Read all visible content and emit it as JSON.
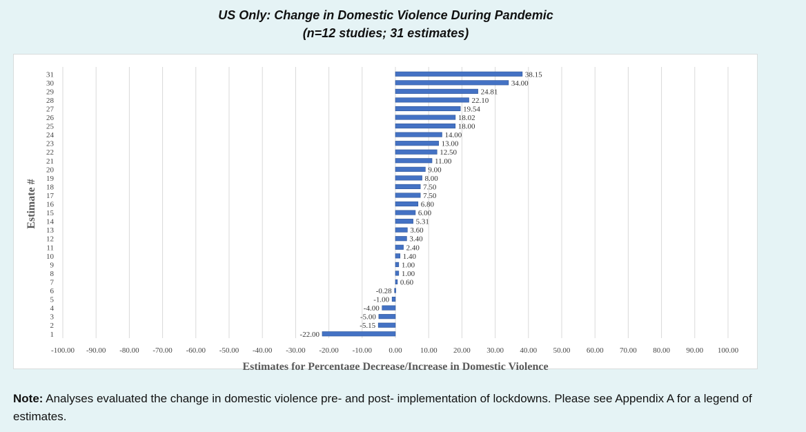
{
  "title_line1": "US Only:  Change in Domestic Violence During Pandemic",
  "title_line2": "(n=12 studies; 31 estimates)",
  "note": {
    "label": "Note:",
    "text": " Analyses evaluated the change in domestic violence pre- and post- implementation of lockdowns. Please see Appendix A for a legend of estimates."
  },
  "chart_data": {
    "type": "bar",
    "orientation": "horizontal",
    "xlabel": "Estimates for Percentage Decrease/Increase in Domestic Violence",
    "ylabel": "Estimate #",
    "xlim": [
      -100,
      100
    ],
    "xticks": [
      "-100.00",
      "-90.00",
      "-80.00",
      "-70.00",
      "-60.00",
      "-50.00",
      "-40.00",
      "-30.00",
      "-20.00",
      "-10.00",
      "0.00",
      "10.00",
      "20.00",
      "30.00",
      "40.00",
      "50.00",
      "60.00",
      "70.00",
      "80.00",
      "90.00",
      "100.00"
    ],
    "grid": "vertical",
    "bar_color": "#4472c4",
    "categories": [
      "1",
      "2",
      "3",
      "4",
      "5",
      "6",
      "7",
      "8",
      "9",
      "10",
      "11",
      "12",
      "13",
      "14",
      "15",
      "16",
      "17",
      "18",
      "19",
      "20",
      "21",
      "22",
      "23",
      "24",
      "25",
      "26",
      "27",
      "28",
      "29",
      "30",
      "31"
    ],
    "values": [
      -22.0,
      -5.15,
      -5.0,
      -4.0,
      -1.0,
      -0.28,
      0.6,
      1.0,
      1.0,
      1.4,
      2.4,
      3.4,
      3.6,
      5.31,
      6.0,
      6.8,
      7.5,
      7.5,
      8.0,
      9.0,
      11.0,
      12.5,
      13.0,
      14.0,
      18.0,
      18.02,
      19.54,
      22.1,
      24.81,
      34.0,
      38.15
    ],
    "labels": [
      "-22.00",
      "-5.15",
      "-5.00",
      "-4.00",
      "-1.00",
      "-0.28",
      "0.60",
      "1.00",
      "1.00",
      "1.40",
      "2.40",
      "3.40",
      "3.60",
      "5.31",
      "6.00",
      "6.80",
      "7.50",
      "7.50",
      "8.00",
      "9.00",
      "11.00",
      "12.50",
      "13.00",
      "14.00",
      "18.00",
      "18.02",
      "19.54",
      "22.10",
      "24.81",
      "34.00",
      "38.15"
    ]
  }
}
